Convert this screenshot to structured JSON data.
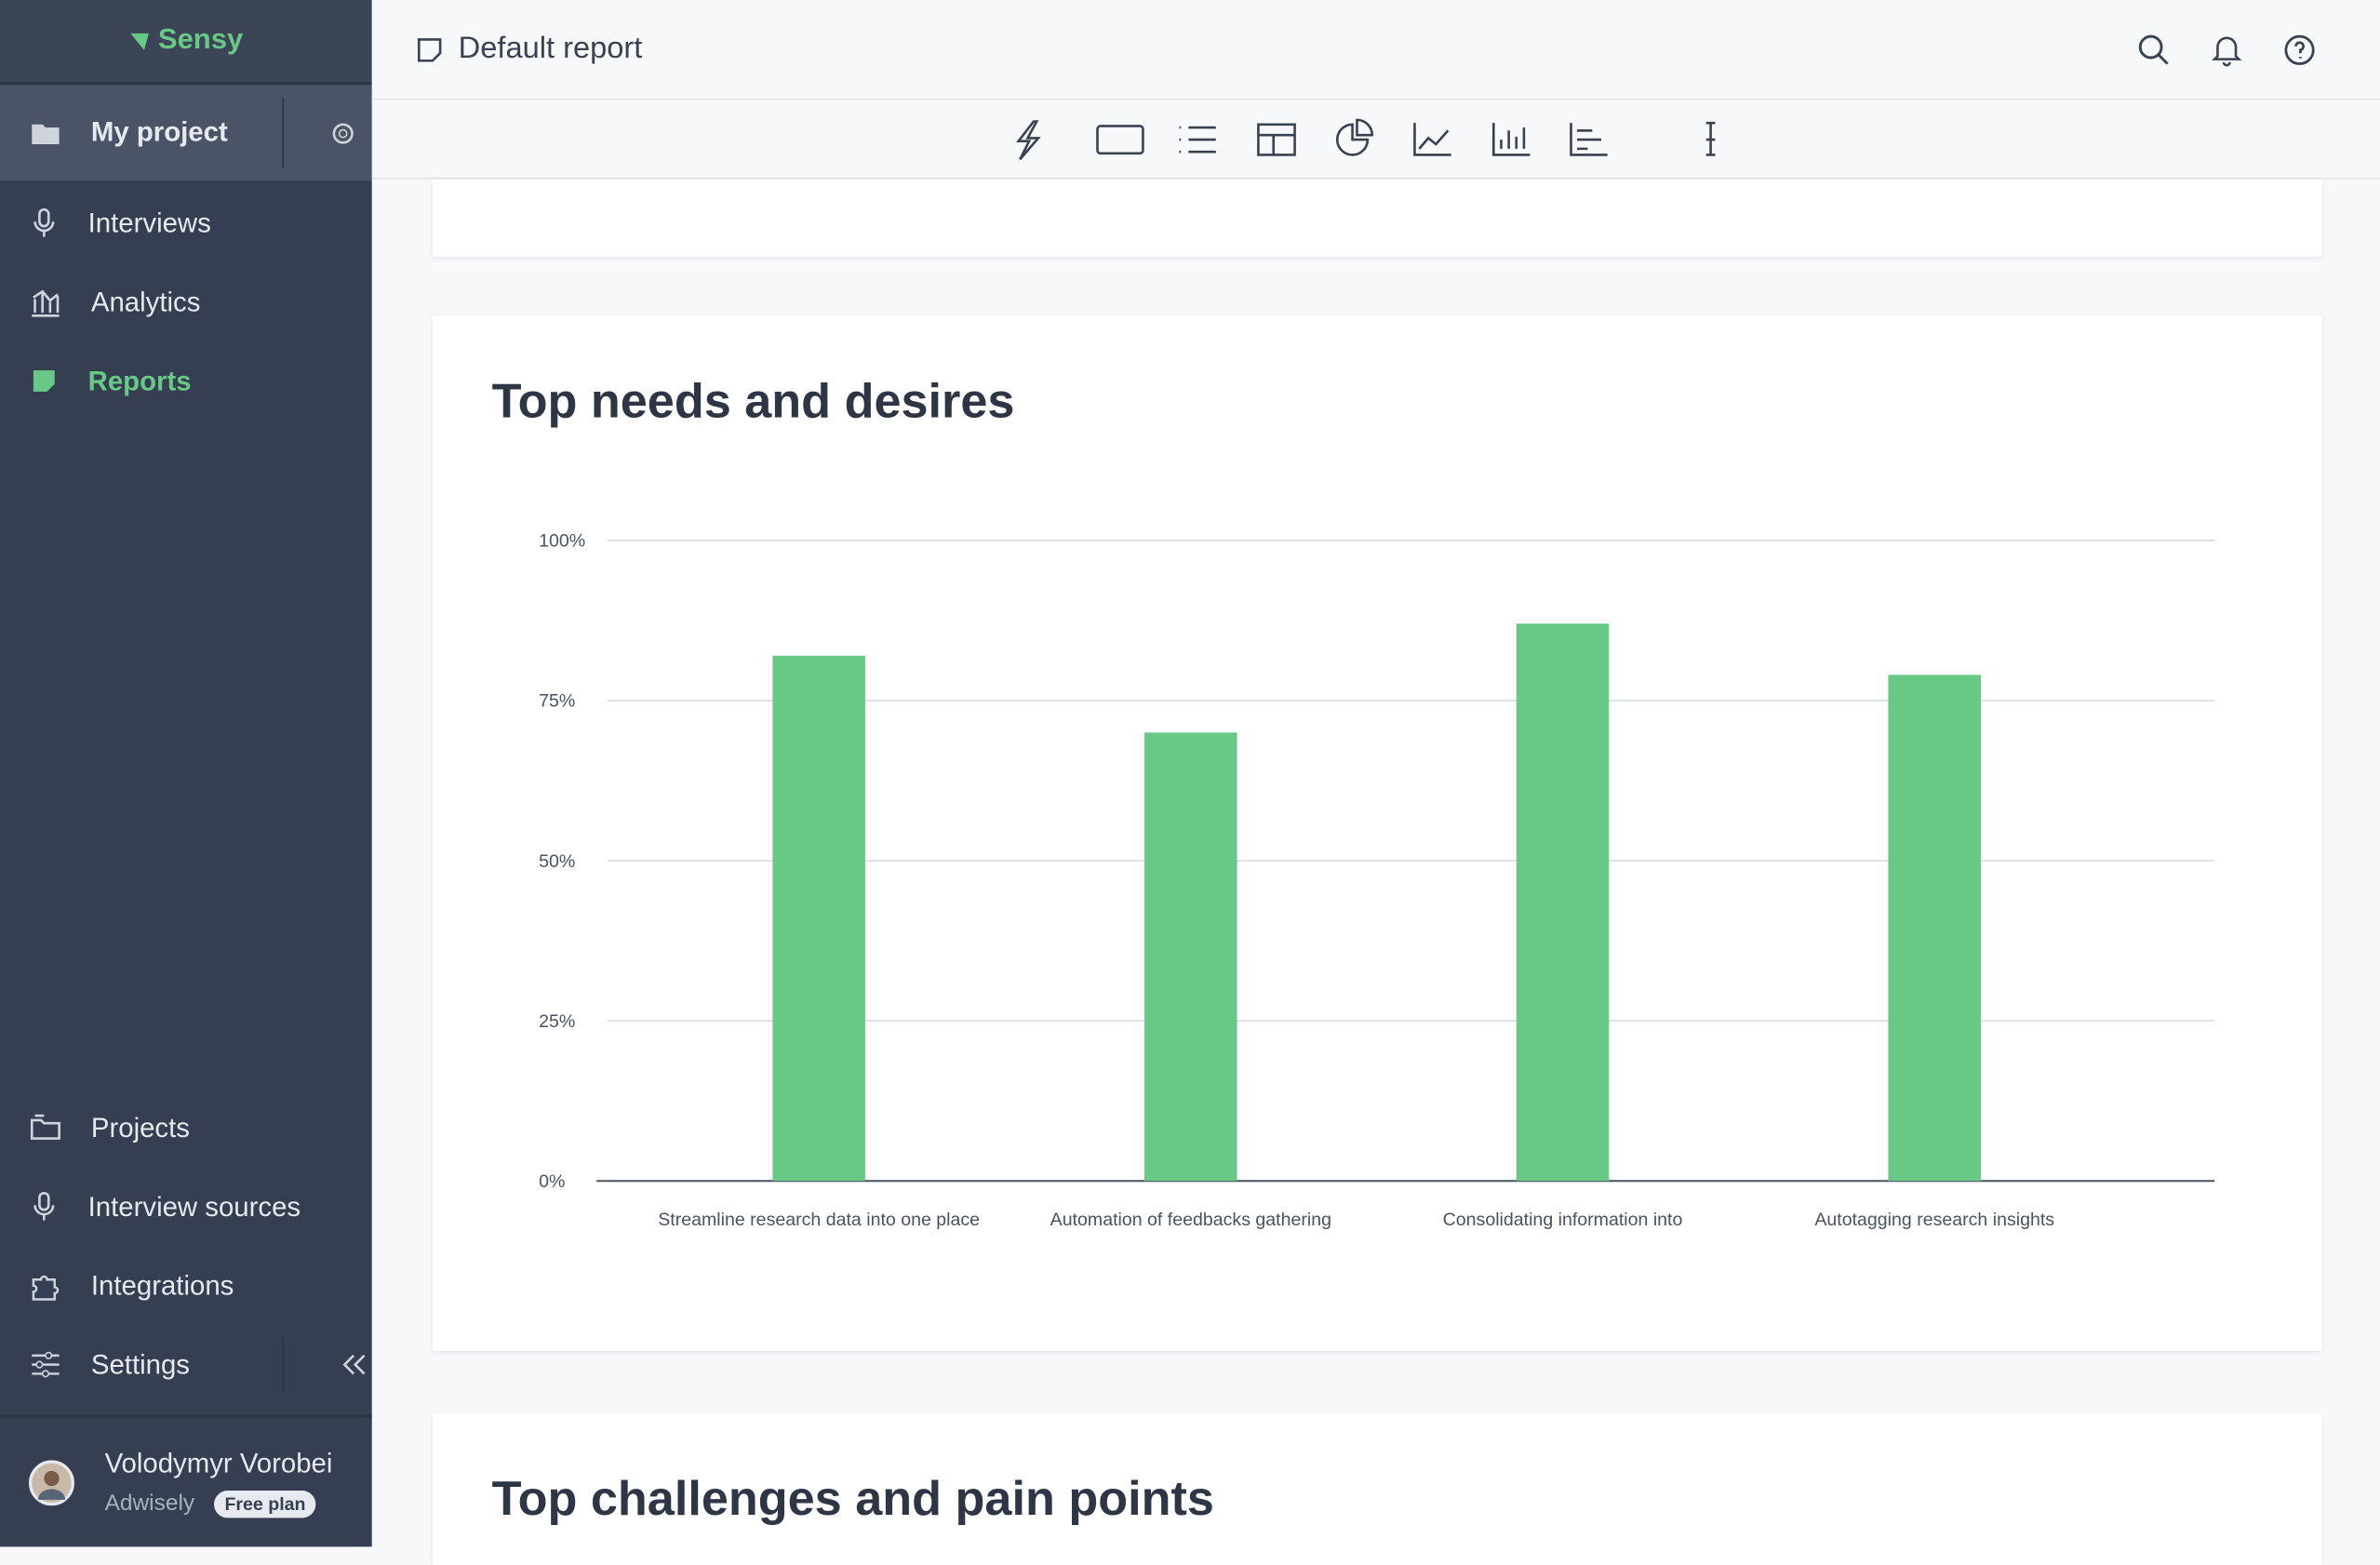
{
  "sidebar": {
    "brand": "Sensy",
    "project": "My project",
    "nav": [
      "Interviews",
      "Analytics",
      "Reports"
    ],
    "bottom_nav": [
      "Projects",
      "Interview sources",
      "Integrations",
      "Settings"
    ],
    "user": {
      "name": "Volodymyr Vorobei",
      "company": "Adwisely",
      "plan": "Free plan"
    }
  },
  "header": {
    "title": "Default report"
  },
  "chart_data": {
    "type": "bar",
    "title": "Top needs and desires",
    "categories": [
      "Streamline research data into one place",
      "Automation of feedbacks gathering",
      "Consolidating information into",
      "Autotagging research insights"
    ],
    "values": [
      82,
      70,
      87,
      79
    ],
    "color": "#68c886",
    "ylim": [
      0,
      100
    ],
    "yticks": [
      {
        "value": 0,
        "label": "0%"
      },
      {
        "value": 25,
        "label": "25%"
      },
      {
        "value": 50,
        "label": "50%"
      },
      {
        "value": 75,
        "label": "75%"
      },
      {
        "value": 100,
        "label": "100%"
      }
    ],
    "grid": true
  },
  "next_section": {
    "title": "Top challenges and pain points"
  }
}
